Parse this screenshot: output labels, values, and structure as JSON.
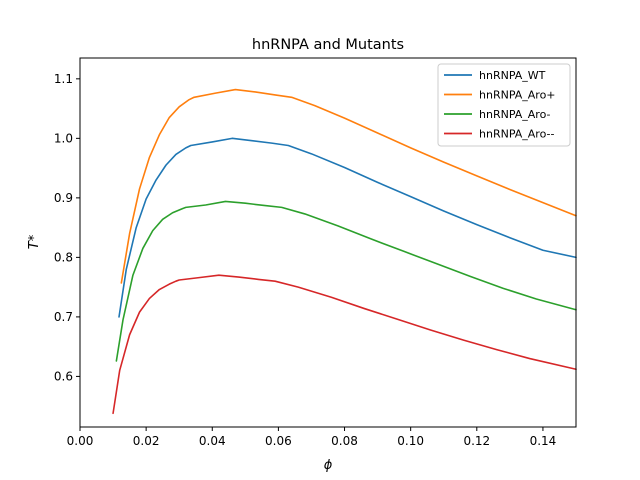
{
  "chart_data": {
    "type": "line",
    "title": "hnRNPA and Mutants",
    "xlabel": "ϕ",
    "ylabel": "T*",
    "xlim": [
      0.0,
      0.15
    ],
    "ylim": [
      0.515,
      1.135
    ],
    "xticks": [
      0.0,
      0.02,
      0.04,
      0.06,
      0.08,
      0.1,
      0.12,
      0.14
    ],
    "xtick_labels": [
      "0.00",
      "0.02",
      "0.04",
      "0.06",
      "0.08",
      "0.10",
      "0.12",
      "0.14"
    ],
    "yticks": [
      0.6,
      0.7,
      0.8,
      0.9,
      1.0,
      1.1
    ],
    "ytick_labels": [
      "0.6",
      "0.7",
      "0.8",
      "0.9",
      "1.0",
      "1.1"
    ],
    "grid": false,
    "legend_position": "top-right",
    "series": [
      {
        "name": "hnRNPA_WT",
        "color": "#1f77b4",
        "x": [
          0.0118,
          0.014,
          0.017,
          0.02,
          0.023,
          0.026,
          0.029,
          0.032,
          0.0335,
          0.04,
          0.046,
          0.052,
          0.058,
          0.063,
          0.07,
          0.08,
          0.09,
          0.1,
          0.11,
          0.12,
          0.13,
          0.14,
          0.15
        ],
        "y": [
          0.7,
          0.78,
          0.85,
          0.898,
          0.93,
          0.955,
          0.973,
          0.984,
          0.988,
          0.994,
          1.0,
          0.996,
          0.992,
          0.988,
          0.974,
          0.951,
          0.926,
          0.902,
          0.878,
          0.855,
          0.833,
          0.812,
          0.8
        ]
      },
      {
        "name": "hnRNPA_Aro+",
        "color": "#ff7f0e",
        "x": [
          0.0125,
          0.015,
          0.018,
          0.021,
          0.024,
          0.027,
          0.03,
          0.033,
          0.0345,
          0.041,
          0.047,
          0.053,
          0.059,
          0.064,
          0.071,
          0.08,
          0.09,
          0.1,
          0.11,
          0.12,
          0.13,
          0.14,
          0.15
        ],
        "y": [
          0.757,
          0.84,
          0.915,
          0.968,
          1.006,
          1.035,
          1.053,
          1.065,
          1.069,
          1.076,
          1.082,
          1.078,
          1.073,
          1.069,
          1.055,
          1.034,
          1.009,
          0.984,
          0.96,
          0.937,
          0.914,
          0.892,
          0.87
        ]
      },
      {
        "name": "hnRNPA_Aro-",
        "color": "#2ca02c",
        "x": [
          0.011,
          0.013,
          0.016,
          0.019,
          0.022,
          0.025,
          0.028,
          0.031,
          0.032,
          0.038,
          0.044,
          0.05,
          0.056,
          0.061,
          0.068,
          0.078,
          0.088,
          0.098,
          0.108,
          0.118,
          0.128,
          0.138,
          0.15
        ],
        "y": [
          0.626,
          0.695,
          0.77,
          0.815,
          0.845,
          0.864,
          0.875,
          0.882,
          0.884,
          0.888,
          0.894,
          0.891,
          0.887,
          0.884,
          0.873,
          0.853,
          0.831,
          0.81,
          0.789,
          0.768,
          0.748,
          0.73,
          0.712
        ]
      },
      {
        "name": "hnRNPA_Aro--",
        "color": "#d62728",
        "x": [
          0.01,
          0.012,
          0.015,
          0.018,
          0.021,
          0.024,
          0.027,
          0.029,
          0.03,
          0.036,
          0.042,
          0.048,
          0.054,
          0.059,
          0.066,
          0.076,
          0.086,
          0.096,
          0.106,
          0.116,
          0.126,
          0.136,
          0.15
        ],
        "y": [
          0.538,
          0.61,
          0.67,
          0.708,
          0.731,
          0.746,
          0.755,
          0.76,
          0.762,
          0.766,
          0.77,
          0.767,
          0.763,
          0.76,
          0.75,
          0.733,
          0.714,
          0.696,
          0.678,
          0.661,
          0.645,
          0.63,
          0.612
        ]
      }
    ]
  }
}
